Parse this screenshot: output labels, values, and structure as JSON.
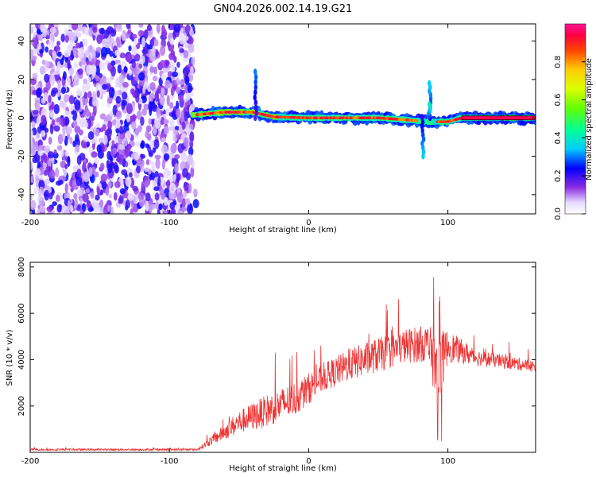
{
  "title": "GN04.2026.002.14.19.G21",
  "chart_data": [
    {
      "type": "heatmap",
      "name": "spectrogram",
      "xlabel": "Height of straight line (km)",
      "ylabel": "Frequency (Hz)",
      "xlim": [
        -200,
        163
      ],
      "ylim": [
        -50,
        49
      ],
      "x_ticks": [
        -200,
        -100,
        0,
        100
      ],
      "y_ticks": [
        -40,
        -20,
        0,
        20,
        40
      ],
      "noise_region_x": [
        -200,
        -83
      ],
      "noise_amplitude": [
        0.05,
        0.25
      ],
      "signal_region_x": [
        -83,
        163
      ],
      "signal_centerline": [
        {
          "x": -83,
          "y": 1.5
        },
        {
          "x": -60,
          "y": 3
        },
        {
          "x": -40,
          "y": 3
        },
        {
          "x": -25,
          "y": 0.5
        },
        {
          "x": 0,
          "y": 0
        },
        {
          "x": 50,
          "y": 0
        },
        {
          "x": 70,
          "y": -1
        },
        {
          "x": 85,
          "y": -2
        },
        {
          "x": 100,
          "y": -2
        },
        {
          "x": 110,
          "y": 0
        },
        {
          "x": 163,
          "y": 0
        }
      ],
      "bursts": [
        {
          "x": -38,
          "y": 24,
          "amplitude": 0.3
        },
        {
          "x": 87,
          "y": 18,
          "amplitude": 0.35
        },
        {
          "x": 82,
          "y": -20,
          "amplitude": 0.35
        },
        {
          "x": 87,
          "y": 7,
          "amplitude": 0.4
        }
      ],
      "colorbar": {
        "label": "Normalized spectral amplitude",
        "range": [
          0,
          1
        ],
        "ticks": [
          "0.0",
          "0.2",
          "0.4",
          "0.6",
          "0.8"
        ],
        "tick_values": [
          0,
          0.2,
          0.4,
          0.6,
          0.8
        ]
      }
    },
    {
      "type": "line",
      "name": "snr",
      "xlabel": "Height of straight line (km)",
      "ylabel": "SNR (10 * v/v)",
      "xlim": [
        -200,
        163
      ],
      "ylim": [
        0,
        8200
      ],
      "x_ticks": [
        -200,
        -100,
        0,
        100
      ],
      "y_ticks": [
        2000,
        4000,
        6000,
        8000
      ],
      "color": "#ee3333",
      "envelope": [
        {
          "x": -200,
          "mean": 120,
          "spread": 80
        },
        {
          "x": -80,
          "mean": 120,
          "spread": 80
        },
        {
          "x": -70,
          "mean": 500,
          "spread": 400
        },
        {
          "x": -50,
          "mean": 1300,
          "spread": 1000
        },
        {
          "x": -30,
          "mean": 1800,
          "spread": 1400
        },
        {
          "x": -10,
          "mean": 2300,
          "spread": 1500
        },
        {
          "x": 10,
          "mean": 3200,
          "spread": 1200
        },
        {
          "x": 30,
          "mean": 3800,
          "spread": 1400
        },
        {
          "x": 50,
          "mean": 4200,
          "spread": 1500
        },
        {
          "x": 70,
          "mean": 4600,
          "spread": 1500
        },
        {
          "x": 85,
          "mean": 4700,
          "spread": 1600
        },
        {
          "x": 93,
          "mean": 3500,
          "spread": 3500
        },
        {
          "x": 100,
          "mean": 4600,
          "spread": 1400
        },
        {
          "x": 120,
          "mean": 4100,
          "spread": 700
        },
        {
          "x": 163,
          "mean": 3700,
          "spread": 500
        }
      ]
    }
  ]
}
